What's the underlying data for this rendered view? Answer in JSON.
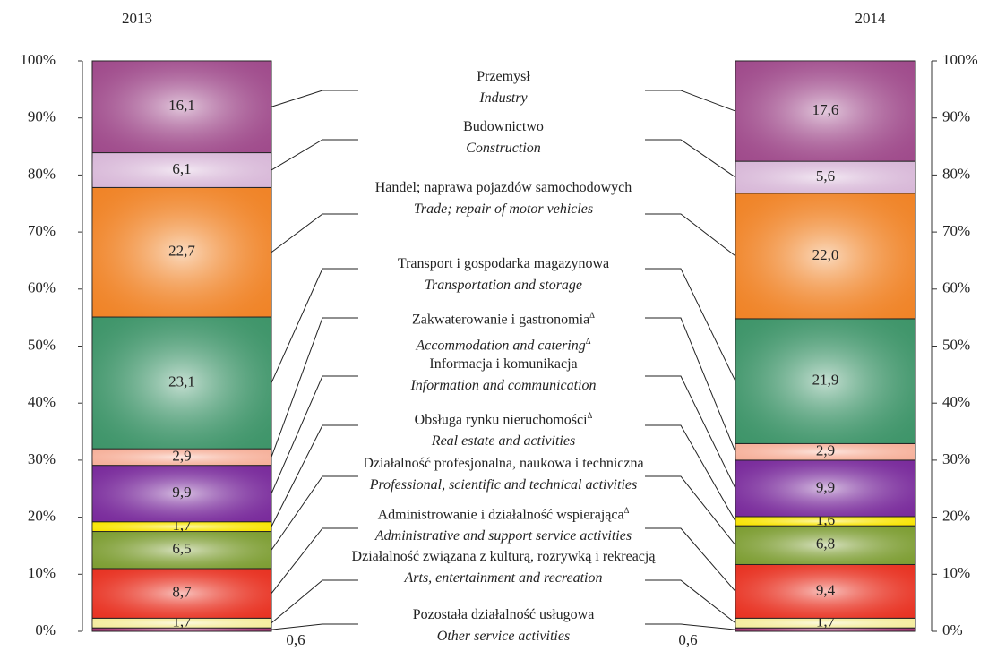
{
  "chart_data": {
    "type": "stacked_bar",
    "categories": [
      "2013",
      "2014"
    ],
    "ylim": [
      0,
      100
    ],
    "yticks": [
      {
        "value": 0,
        "label": "0%"
      },
      {
        "value": 10,
        "label": "10%"
      },
      {
        "value": 20,
        "label": "20%"
      },
      {
        "value": 30,
        "label": "30%"
      },
      {
        "value": 40,
        "label": "40%"
      },
      {
        "value": 50,
        "label": "50%"
      },
      {
        "value": 60,
        "label": "60%"
      },
      {
        "value": 70,
        "label": "70%"
      },
      {
        "value": 80,
        "label": "80%"
      },
      {
        "value": 90,
        "label": "90%"
      },
      {
        "value": 100,
        "label": "100%"
      }
    ],
    "series": [
      {
        "name": "Pozostała działalność usługowa",
        "name_en": "Other service activities",
        "color": "#a03070",
        "values": [
          0.6,
          0.6
        ],
        "value_labels": [
          "0,6",
          "0,6"
        ]
      },
      {
        "name": "Działalność związana z kulturą, rozrywką i rekreacją",
        "name_en": "Arts, entertainment and recreation",
        "color": "#f4ec9c",
        "values": [
          1.7,
          1.7
        ],
        "value_labels": [
          "1,7",
          "1,7"
        ]
      },
      {
        "name": "Administrowanie i działalność wspierająca",
        "mark": "Δ",
        "name_en": "Administrative and support service activities",
        "color": "#e83424",
        "values": [
          8.7,
          9.4
        ],
        "value_labels": [
          "8,7",
          "9,4"
        ]
      },
      {
        "name": "Działalność profesjonalna, naukowa i techniczna",
        "name_en": "Professional, scientific and technical activities",
        "color": "#7e9e34",
        "values": [
          6.5,
          6.8
        ],
        "value_labels": [
          "6,5",
          "6,8"
        ]
      },
      {
        "name": "Obsługa rynku nieruchomości",
        "mark": "Δ",
        "name_en": "Real estate and activities",
        "color": "#f8e400",
        "values": [
          1.7,
          1.6
        ],
        "value_labels": [
          "1,7",
          "1,6"
        ]
      },
      {
        "name": "Informacja i komunikacja",
        "name_en": "Information and communication",
        "color": "#7a2c9c",
        "values": [
          9.9,
          9.9
        ],
        "value_labels": [
          "9,9",
          "9,9"
        ]
      },
      {
        "name": "Zakwaterowanie i gastronomia",
        "mark": "Δ",
        "name_en": "Accommodation and catering",
        "mark_en": "Δ",
        "color": "#f6b09a",
        "values": [
          2.9,
          2.9
        ],
        "value_labels": [
          "2,9",
          "2,9"
        ]
      },
      {
        "name": "Transport i gospodarka magazynowa",
        "name_en": "Transportation and storage",
        "color": "#3f956a",
        "values": [
          23.1,
          21.9
        ],
        "value_labels": [
          "23,1",
          "21,9"
        ]
      },
      {
        "name": "Handel; naprawa pojazdów samochodowych",
        "name_en": "Trade; repair of motor vehicles",
        "color": "#f08428",
        "values": [
          22.7,
          22.0
        ],
        "value_labels": [
          "22,7",
          "22,0"
        ]
      },
      {
        "name": "Budownictwo",
        "name_en": "Construction",
        "color": "#d8b8d8",
        "values": [
          6.1,
          5.6
        ],
        "value_labels": [
          "6,1",
          "5,6"
        ]
      },
      {
        "name": "Przemysł",
        "name_en": "Industry",
        "color": "#a04c8c",
        "values": [
          16.1,
          17.6
        ],
        "value_labels": [
          "16,1",
          "17,6"
        ]
      }
    ]
  }
}
